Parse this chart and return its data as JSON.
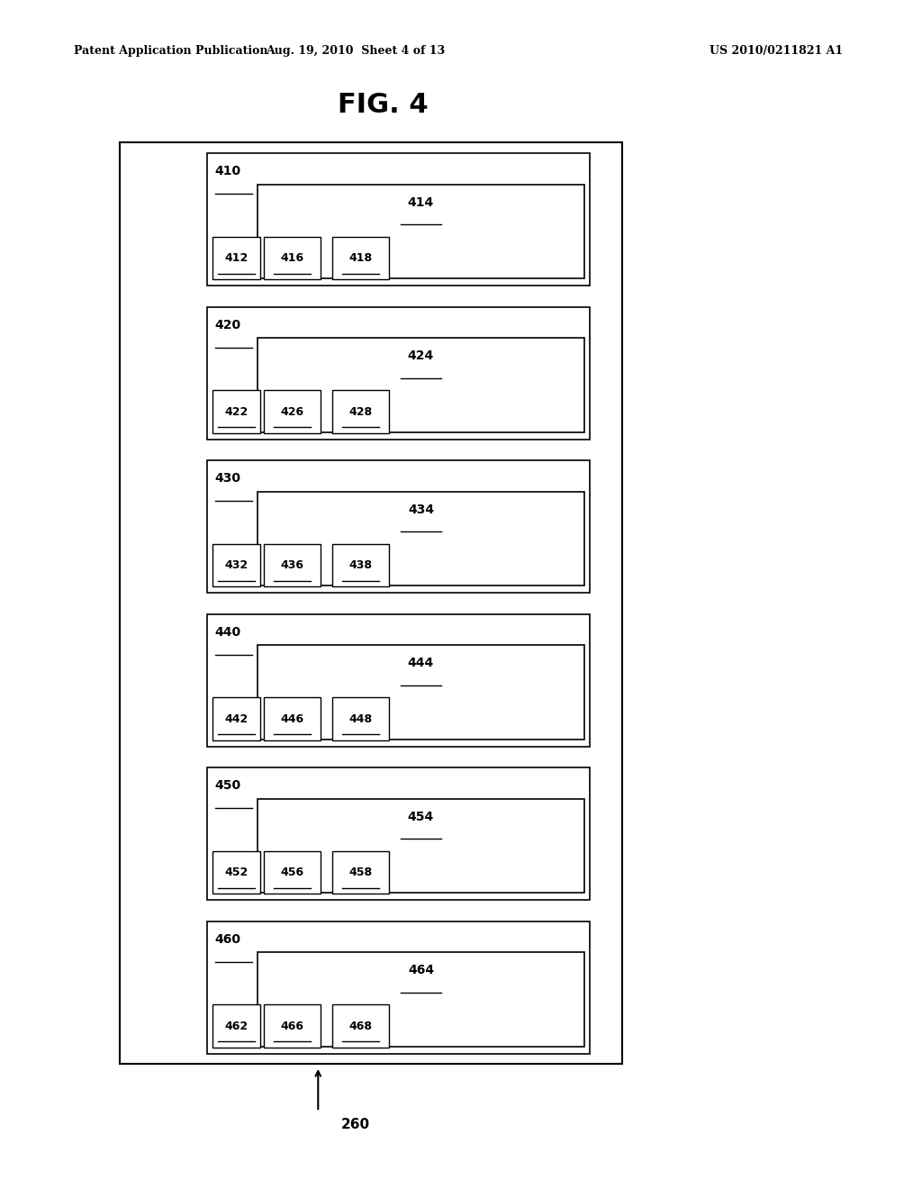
{
  "title": "FIG. 4",
  "header_left": "Patent Application Publication",
  "header_mid": "Aug. 19, 2010  Sheet 4 of 13",
  "header_right": "US 2010/0211821 A1",
  "fig_label": "260",
  "bg_color": "#ffffff",
  "box_color": "#000000",
  "groups": [
    {
      "outer_label": "410",
      "inner_label": "414",
      "sub_labels": [
        "412",
        "416",
        "418"
      ]
    },
    {
      "outer_label": "420",
      "inner_label": "424",
      "sub_labels": [
        "422",
        "426",
        "428"
      ]
    },
    {
      "outer_label": "430",
      "inner_label": "434",
      "sub_labels": [
        "432",
        "436",
        "438"
      ]
    },
    {
      "outer_label": "440",
      "inner_label": "444",
      "sub_labels": [
        "442",
        "446",
        "448"
      ]
    },
    {
      "outer_label": "450",
      "inner_label": "454",
      "sub_labels": [
        "452",
        "456",
        "458"
      ]
    },
    {
      "outer_label": "460",
      "inner_label": "464",
      "sub_labels": [
        "462",
        "466",
        "468"
      ]
    }
  ]
}
